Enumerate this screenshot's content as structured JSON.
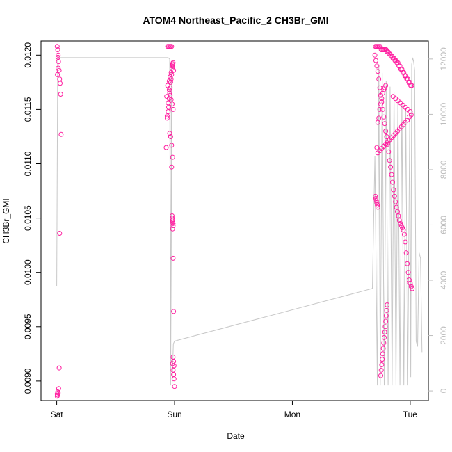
{
  "chart_data": {
    "type": "scatter",
    "title": "ATOM4 Northeast_Pacific_2 CH3Br_GMI",
    "xlabel": "Date",
    "ylabel": "CH3Br_GMI",
    "x_tick_labels": [
      "Sat",
      "Sun",
      "Mon",
      "Tue"
    ],
    "x_ticks_hours": [
      0,
      24,
      48,
      72
    ],
    "xlim_hours": [
      -3.2,
      75.7
    ],
    "ylim": [
      0.00882,
      0.01213
    ],
    "y_ticks": [
      0.009,
      0.0095,
      0.01,
      0.0105,
      0.011,
      0.0115,
      0.012
    ],
    "y_tick_labels": [
      "0.0090",
      "0.0095",
      "0.0100",
      "0.0105",
      "0.0110",
      "0.0115",
      "0.0120"
    ],
    "y2_ticks": [
      0,
      2000,
      4000,
      6000,
      8000,
      10000,
      12000
    ],
    "y2_tick_labels": [
      "0",
      "2000",
      "4000",
      "6000",
      "8000",
      "10000",
      "12000"
    ],
    "y2lim": [
      -350,
      12650
    ],
    "grid": false,
    "colors": {
      "points": "#ff1fa0",
      "altitude_line": "#c8c8c8",
      "axis": "#000000",
      "right_axis": "#bdbdbd"
    },
    "series": [
      {
        "marker": "open-circle",
        "axis": "left",
        "x_hours": [
          0.1,
          0.2,
          0.3,
          0.35,
          0.5,
          0.6,
          0.7,
          0.8,
          0.9,
          0.6,
          0.5,
          0.4,
          0.3,
          0.2,
          0.1,
          0.1,
          0.2,
          0.3,
          0.15,
          0.25,
          22.3,
          22.5,
          22.7,
          22.8,
          22.9,
          23.0,
          23.1,
          23.2,
          23.3,
          23.4,
          23.5,
          23.6,
          22.6,
          22.8,
          23.0,
          23.2,
          23.4,
          23.6,
          23.8,
          22.4,
          22.6,
          22.9,
          23.1,
          23.3,
          23.5,
          23.7,
          22.5,
          22.7,
          23.0,
          23.2,
          23.4,
          23.6,
          22.9,
          23.1,
          23.3,
          23.5,
          23.7,
          23.4,
          23.5,
          23.6,
          23.7,
          23.5,
          23.6,
          23.7,
          23.6,
          23.7,
          23.8,
          23.7,
          23.8,
          23.9,
          23.6,
          23.7,
          23.8,
          23.9,
          24.0,
          64.8,
          65.0,
          65.2,
          65.4,
          65.6,
          65.8,
          66.0,
          66.2,
          66.4,
          66.6,
          66.8,
          67.0,
          67.2,
          67.4,
          67.6,
          67.8,
          68.0,
          68.2,
          68.4,
          68.6,
          68.8,
          69.0,
          69.2,
          69.4,
          69.6,
          69.8,
          70.0,
          70.2,
          70.4,
          70.6,
          70.8,
          71.0,
          71.2,
          71.4,
          71.6,
          71.8,
          72.0,
          72.2,
          72.4,
          64.9,
          65.1,
          65.3,
          65.5,
          65.7,
          65.9,
          66.1,
          66.3,
          66.5,
          66.7,
          66.9,
          67.1,
          67.3,
          67.5,
          67.7,
          67.9,
          68.1,
          68.3,
          68.5,
          68.7,
          68.9,
          69.1,
          69.3,
          69.5,
          69.7,
          69.9,
          70.1,
          70.3,
          70.5,
          70.7,
          70.9,
          71.1,
          71.3,
          71.5,
          71.7,
          71.9,
          72.1,
          72.3,
          64.9,
          65.0,
          65.1,
          65.2,
          65.3,
          65.4,
          65.2,
          65.4,
          65.6,
          65.8,
          66.0,
          66.2,
          66.4,
          66.6,
          66.8,
          67.0,
          68.5,
          69.0,
          69.5,
          70.0,
          70.5,
          71.0,
          71.5,
          72.0,
          72.2,
          71.8,
          71.4,
          71.0,
          70.6,
          70.2,
          69.8,
          69.4,
          69.0,
          68.6,
          68.2,
          67.8,
          67.4,
          67.0,
          66.6,
          66.2,
          65.8,
          65.4,
          66.0,
          66.1,
          66.2,
          66.3,
          66.4,
          66.5,
          66.6,
          66.7,
          66.8,
          66.9,
          67.0,
          67.1,
          67.2,
          67.3
        ],
        "y": [
          0.01208,
          0.01205,
          0.012,
          0.01194,
          0.01186,
          0.01178,
          0.01174,
          0.01164,
          0.01127,
          0.01036,
          0.00912,
          0.00893,
          0.00889,
          0.00887,
          0.00886,
          0.00888,
          0.0089,
          0.01188,
          0.01182,
          0.01198,
          0.01115,
          0.01142,
          0.01148,
          0.01152,
          0.0116,
          0.01165,
          0.0117,
          0.01175,
          0.01178,
          0.01182,
          0.01188,
          0.01192,
          0.01208,
          0.01208,
          0.01208,
          0.01208,
          0.01208,
          0.01191,
          0.01186,
          0.01162,
          0.01172,
          0.01176,
          0.0118,
          0.01184,
          0.0119,
          0.01193,
          0.01144,
          0.01156,
          0.01128,
          0.01125,
          0.01117,
          0.01106,
          0.01168,
          0.01163,
          0.01159,
          0.01155,
          0.0115,
          0.01097,
          0.01052,
          0.01048,
          0.01045,
          0.0105,
          0.01046,
          0.01043,
          0.0104,
          0.01013,
          0.00964,
          0.00922,
          0.00918,
          0.00914,
          0.00916,
          0.0091,
          0.00906,
          0.00902,
          0.00895,
          0.012,
          0.01195,
          0.0119,
          0.01185,
          0.01178,
          0.0117,
          0.01163,
          0.01157,
          0.0115,
          0.01143,
          0.01137,
          0.0113,
          0.01125,
          0.01118,
          0.01111,
          0.01103,
          0.01097,
          0.0109,
          0.01083,
          0.01076,
          0.0107,
          0.01065,
          0.0106,
          0.01056,
          0.01052,
          0.01048,
          0.01045,
          0.01043,
          0.01041,
          0.01039,
          0.01035,
          0.01028,
          0.01018,
          0.01008,
          0.01,
          0.00993,
          0.0099,
          0.00987,
          0.00985,
          0.01208,
          0.01208,
          0.01208,
          0.01208,
          0.01208,
          0.01208,
          0.01205,
          0.01205,
          0.01205,
          0.01205,
          0.01205,
          0.01205,
          0.01203,
          0.01203,
          0.01201,
          0.01201,
          0.01199,
          0.01199,
          0.01197,
          0.01197,
          0.01195,
          0.01195,
          0.01193,
          0.01193,
          0.0119,
          0.0119,
          0.01187,
          0.01187,
          0.01184,
          0.01184,
          0.01181,
          0.01181,
          0.01178,
          0.01178,
          0.01175,
          0.01175,
          0.01172,
          0.01172,
          0.0107,
          0.01068,
          0.01066,
          0.01064,
          0.01062,
          0.0106,
          0.01115,
          0.01138,
          0.01142,
          0.0115,
          0.01155,
          0.0116,
          0.01165,
          0.01168,
          0.0117,
          0.01172,
          0.01162,
          0.0116,
          0.01158,
          0.01156,
          0.01154,
          0.01152,
          0.0115,
          0.01148,
          0.01145,
          0.01143,
          0.0114,
          0.01138,
          0.01136,
          0.01134,
          0.01132,
          0.0113,
          0.01128,
          0.01126,
          0.01124,
          0.01122,
          0.0112,
          0.01118,
          0.01116,
          0.01114,
          0.01112,
          0.0111,
          0.00905,
          0.0091,
          0.00915,
          0.0092,
          0.00925,
          0.0093,
          0.00935,
          0.0094,
          0.00945,
          0.0095,
          0.00955,
          0.0096,
          0.00965,
          0.0097
        ]
      },
      {
        "marker": "line",
        "axis": "right",
        "x_hours": [
          0.0,
          0.2,
          0.3,
          0.45,
          0.5,
          0.6,
          22.2,
          22.7,
          23.0,
          23.2,
          23.35,
          23.5,
          23.75,
          24.0,
          64.3,
          64.8,
          65.3,
          65.6,
          65.9,
          66.3,
          66.7,
          67.1,
          67.5,
          67.9,
          68.3,
          68.7,
          69.1,
          69.5,
          69.9,
          70.3,
          70.7,
          71.1,
          71.5,
          71.9,
          72.1,
          72.3,
          72.5,
          72.7,
          72.9,
          73.2,
          73.5,
          73.8,
          74.1,
          74.4
        ],
        "y": [
          3800,
          12050,
          12050,
          12050,
          12050,
          12050,
          12050,
          12050,
          12000,
          200,
          11800,
          200,
          1700,
          1800,
          3700,
          8500,
          200,
          11800,
          200,
          11500,
          200,
          11200,
          200,
          11000,
          200,
          10800,
          200,
          10600,
          200,
          10400,
          200,
          10200,
          200,
          10000,
          500,
          11800,
          12050,
          11900,
          11600,
          1800,
          1600,
          5000,
          4800,
          1400
        ]
      }
    ]
  }
}
